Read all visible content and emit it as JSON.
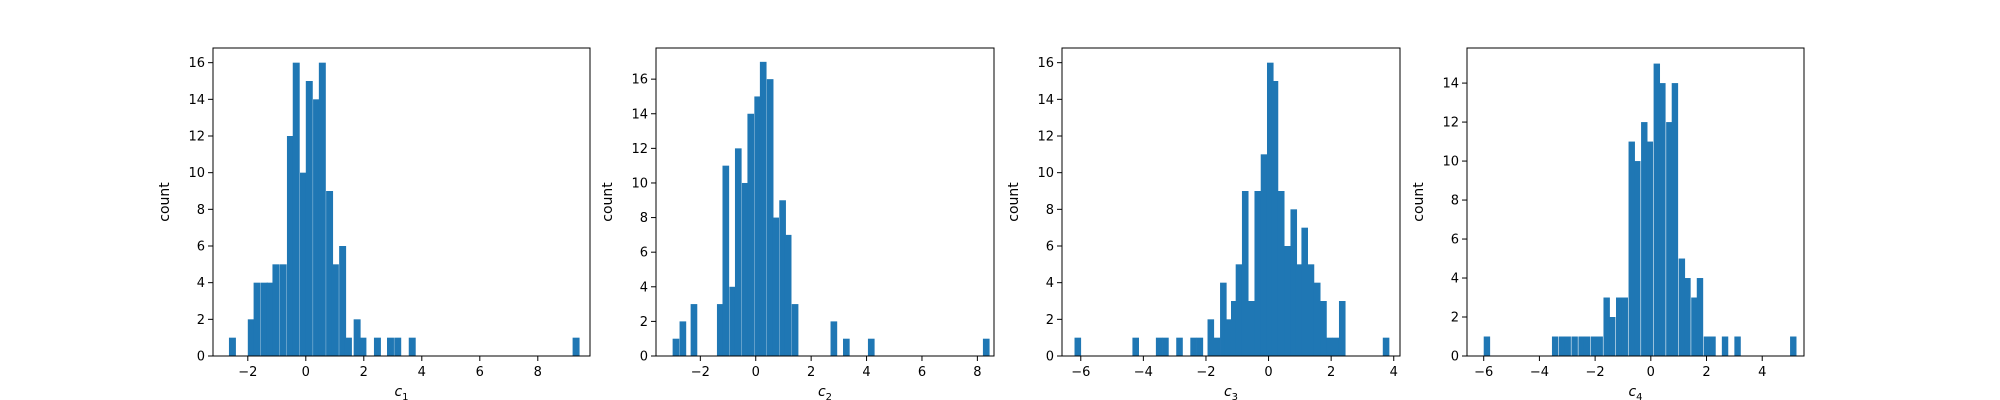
{
  "chart_data": [
    {
      "type": "bar",
      "subtype": "histogram",
      "xlabel": "c",
      "xlabel_sub": "1",
      "ylabel": "count",
      "xlim": [
        -3.2,
        9.8
      ],
      "ylim": [
        0,
        16.8
      ],
      "xticks": [
        -2,
        0,
        2,
        4,
        6,
        8
      ],
      "xtick_labels": [
        "−2",
        "0",
        "2",
        "4",
        "6",
        "8"
      ],
      "yticks": [
        0,
        2,
        4,
        6,
        8,
        10,
        12,
        14,
        16
      ],
      "ytick_labels": [
        "0",
        "2",
        "4",
        "6",
        "8",
        "10",
        "12",
        "14",
        "16"
      ],
      "bin_width": 0.24,
      "bins": [
        [
          -2.65,
          1
        ],
        [
          -2.0,
          2
        ],
        [
          -1.8,
          4
        ],
        [
          -1.55,
          4
        ],
        [
          -1.35,
          4
        ],
        [
          -1.15,
          5
        ],
        [
          -0.9,
          5
        ],
        [
          -0.65,
          12
        ],
        [
          -0.45,
          16
        ],
        [
          -0.2,
          10
        ],
        [
          0.0,
          15
        ],
        [
          0.25,
          14
        ],
        [
          0.45,
          16
        ],
        [
          0.7,
          9
        ],
        [
          0.9,
          5
        ],
        [
          1.15,
          6
        ],
        [
          1.35,
          1
        ],
        [
          1.65,
          2
        ],
        [
          1.85,
          1
        ],
        [
          2.35,
          1
        ],
        [
          2.8,
          1
        ],
        [
          3.05,
          1
        ],
        [
          3.55,
          1
        ],
        [
          9.2,
          1
        ]
      ],
      "color": "#1f77b4"
    },
    {
      "type": "bar",
      "subtype": "histogram",
      "xlabel": "c",
      "xlabel_sub": "2",
      "ylabel": "count",
      "xlim": [
        -3.6,
        8.6
      ],
      "ylim": [
        0,
        17.8
      ],
      "xticks": [
        -2,
        0,
        2,
        4,
        6,
        8
      ],
      "xtick_labels": [
        "−2",
        "0",
        "2",
        "4",
        "6",
        "8"
      ],
      "yticks": [
        0,
        2,
        4,
        6,
        8,
        10,
        12,
        14,
        16
      ],
      "ytick_labels": [
        "0",
        "2",
        "4",
        "6",
        "8",
        "10",
        "12",
        "14",
        "16"
      ],
      "bin_width": 0.24,
      "bins": [
        [
          -3.0,
          1
        ],
        [
          -2.75,
          2
        ],
        [
          -2.35,
          3
        ],
        [
          -1.4,
          3
        ],
        [
          -1.2,
          11
        ],
        [
          -0.95,
          4
        ],
        [
          -0.75,
          12
        ],
        [
          -0.5,
          10
        ],
        [
          -0.3,
          14
        ],
        [
          -0.05,
          15
        ],
        [
          0.15,
          17
        ],
        [
          0.4,
          16
        ],
        [
          0.6,
          8
        ],
        [
          0.85,
          9
        ],
        [
          1.05,
          7
        ],
        [
          1.3,
          3
        ],
        [
          2.7,
          2
        ],
        [
          3.15,
          1
        ],
        [
          4.05,
          1
        ],
        [
          8.2,
          1
        ]
      ],
      "color": "#1f77b4"
    },
    {
      "type": "bar",
      "subtype": "histogram",
      "xlabel": "c",
      "xlabel_sub": "3",
      "ylabel": "count",
      "xlim": [
        -6.6,
        4.2
      ],
      "ylim": [
        0,
        16.8
      ],
      "xticks": [
        -6,
        -4,
        -2,
        0,
        2,
        4
      ],
      "xtick_labels": [
        "−6",
        "−4",
        "−2",
        "0",
        "2",
        "4"
      ],
      "yticks": [
        0,
        2,
        4,
        6,
        8,
        10,
        12,
        14,
        16
      ],
      "ytick_labels": [
        "0",
        "2",
        "4",
        "6",
        "8",
        "10",
        "12",
        "14",
        "16"
      ],
      "bin_width": 0.21,
      "bins": [
        [
          -6.2,
          1
        ],
        [
          -4.35,
          1
        ],
        [
          -3.6,
          1
        ],
        [
          -3.4,
          1
        ],
        [
          -2.95,
          1
        ],
        [
          -2.5,
          1
        ],
        [
          -2.3,
          1
        ],
        [
          -1.95,
          2
        ],
        [
          -1.75,
          1
        ],
        [
          -1.55,
          4
        ],
        [
          -1.4,
          2
        ],
        [
          -1.2,
          3
        ],
        [
          -1.05,
          5
        ],
        [
          -0.85,
          9
        ],
        [
          -0.65,
          3
        ],
        [
          -0.45,
          9
        ],
        [
          -0.25,
          11
        ],
        [
          -0.05,
          16
        ],
        [
          0.1,
          15
        ],
        [
          0.3,
          9
        ],
        [
          0.5,
          6
        ],
        [
          0.7,
          8
        ],
        [
          0.85,
          5
        ],
        [
          1.05,
          7
        ],
        [
          1.25,
          5
        ],
        [
          1.45,
          4
        ],
        [
          1.65,
          3
        ],
        [
          1.85,
          1
        ],
        [
          2.05,
          1
        ],
        [
          2.25,
          3
        ],
        [
          3.65,
          1
        ]
      ],
      "color": "#1f77b4"
    },
    {
      "type": "bar",
      "subtype": "histogram",
      "xlabel": "c",
      "xlabel_sub": "4",
      "ylabel": "count",
      "xlim": [
        -6.6,
        5.5
      ],
      "ylim": [
        0,
        15.8
      ],
      "xticks": [
        -6,
        -4,
        -2,
        0,
        2,
        4
      ],
      "xtick_labels": [
        "−6",
        "−4",
        "−2",
        "0",
        "2",
        "4"
      ],
      "yticks": [
        0,
        2,
        4,
        6,
        8,
        10,
        12,
        14
      ],
      "ytick_labels": [
        "0",
        "2",
        "4",
        "6",
        "8",
        "10",
        "12",
        "14"
      ],
      "bin_width": 0.23,
      "bins": [
        [
          -6.0,
          1
        ],
        [
          -3.55,
          1
        ],
        [
          -3.3,
          1
        ],
        [
          -3.1,
          1
        ],
        [
          -2.85,
          1
        ],
        [
          -2.6,
          1
        ],
        [
          -2.4,
          1
        ],
        [
          -2.15,
          1
        ],
        [
          -1.95,
          1
        ],
        [
          -1.7,
          3
        ],
        [
          -1.5,
          2
        ],
        [
          -1.25,
          3
        ],
        [
          -1.05,
          3
        ],
        [
          -0.8,
          11
        ],
        [
          -0.6,
          10
        ],
        [
          -0.35,
          12
        ],
        [
          -0.15,
          11
        ],
        [
          0.1,
          15
        ],
        [
          0.3,
          14
        ],
        [
          0.55,
          12
        ],
        [
          0.75,
          14
        ],
        [
          1.0,
          5
        ],
        [
          1.2,
          4
        ],
        [
          1.45,
          3
        ],
        [
          1.65,
          4
        ],
        [
          1.9,
          1
        ],
        [
          2.1,
          1
        ],
        [
          2.55,
          1
        ],
        [
          3.0,
          1
        ],
        [
          5.0,
          1
        ]
      ],
      "color": "#1f77b4"
    }
  ]
}
